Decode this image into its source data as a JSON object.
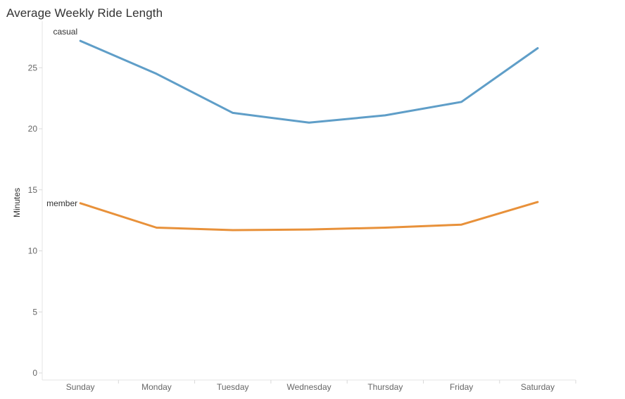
{
  "chart_data": {
    "type": "line",
    "title": "Average Weekly Ride Length",
    "xlabel": "",
    "ylabel": "Minutes",
    "categories": [
      "Sunday",
      "Monday",
      "Tuesday",
      "Wednesday",
      "Thursday",
      "Friday",
      "Saturday"
    ],
    "ylim": [
      0,
      28
    ],
    "yticks": [
      0,
      5,
      10,
      15,
      20,
      25
    ],
    "grid": false,
    "series": [
      {
        "name": "casual",
        "color": "#5f9ec8",
        "values": [
          27.2,
          24.5,
          21.3,
          20.5,
          21.1,
          22.2,
          26.6
        ]
      },
      {
        "name": "member",
        "color": "#e8913a",
        "values": [
          13.9,
          11.9,
          11.7,
          11.75,
          11.9,
          12.15,
          14.0
        ]
      }
    ]
  }
}
